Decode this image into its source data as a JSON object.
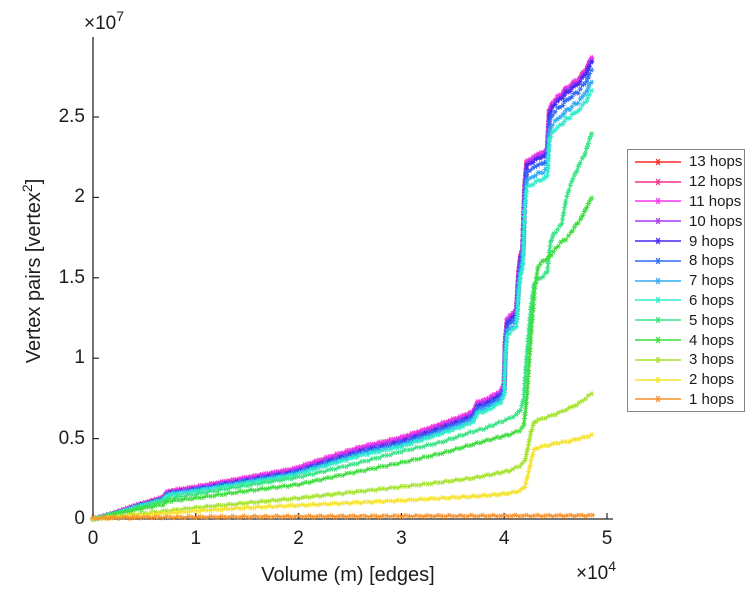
{
  "figure": {
    "xlabel": "Volume (m) [edges]",
    "ylabel_pre": "Vertex pairs [vertex",
    "ylabel_sup": "2",
    "ylabel_post": "]",
    "y_exponent_base": "×10",
    "y_exponent": "7",
    "x_exponent_base": "×10",
    "x_exponent": "4",
    "x_tick_labels": [
      "0",
      "1",
      "2",
      "3",
      "4",
      "5"
    ],
    "y_tick_labels": [
      "0",
      "0.5",
      "1",
      "1.5",
      "2",
      "2.5"
    ],
    "axis_color": "#262626",
    "text_color": "#1c1c1c",
    "legend_border_color": "#848484"
  },
  "chart_data": {
    "type": "line",
    "title": "",
    "xlabel": "Volume (m) [edges]",
    "ylabel": "Vertex pairs [vertex^2]",
    "x_scale_exponent": 4,
    "y_scale_exponent": 7,
    "xlim": [
      0,
      5.06
    ],
    "ylim": [
      0,
      3.0
    ],
    "x_ticks": [
      0,
      1,
      2,
      3,
      4,
      5
    ],
    "y_ticks": [
      0,
      0.5,
      1,
      1.5,
      2,
      2.5
    ],
    "marker": "asterisk",
    "grid": false,
    "legend_position": "right-outside",
    "shapes": {
      "hops9_base": [
        [
          0,
          0
        ],
        [
          0.18,
          0.03
        ],
        [
          0.4,
          0.075
        ],
        [
          0.68,
          0.125
        ],
        [
          0.72,
          0.155
        ],
        [
          0.78,
          0.165
        ],
        [
          1.0,
          0.185
        ],
        [
          1.5,
          0.24
        ],
        [
          1.95,
          0.29
        ],
        [
          2.3,
          0.36
        ],
        [
          2.6,
          0.42
        ],
        [
          3.0,
          0.48
        ],
        [
          3.3,
          0.545
        ],
        [
          3.6,
          0.615
        ],
        [
          3.7,
          0.645
        ],
        [
          3.74,
          0.7
        ],
        [
          3.82,
          0.715
        ],
        [
          3.9,
          0.745
        ],
        [
          3.97,
          0.775
        ],
        [
          4.0,
          0.82
        ],
        [
          4.01,
          1.08
        ],
        [
          4.03,
          1.22
        ],
        [
          4.08,
          1.25
        ],
        [
          4.12,
          1.28
        ],
        [
          4.14,
          1.5
        ],
        [
          4.16,
          1.62
        ],
        [
          4.18,
          1.66
        ],
        [
          4.2,
          2.05
        ],
        [
          4.22,
          2.2
        ],
        [
          4.28,
          2.22
        ],
        [
          4.33,
          2.245
        ],
        [
          4.38,
          2.25
        ],
        [
          4.42,
          2.28
        ],
        [
          4.44,
          2.52
        ],
        [
          4.47,
          2.56
        ],
        [
          4.52,
          2.6
        ],
        [
          4.57,
          2.62
        ],
        [
          4.6,
          2.655
        ],
        [
          4.64,
          2.66
        ],
        [
          4.68,
          2.695
        ],
        [
          4.72,
          2.7
        ],
        [
          4.76,
          2.745
        ],
        [
          4.8,
          2.77
        ],
        [
          4.83,
          2.82
        ],
        [
          4.85,
          2.84
        ]
      ],
      "hops5": [
        [
          0,
          0
        ],
        [
          0.4,
          0.065
        ],
        [
          0.7,
          0.115
        ],
        [
          0.75,
          0.13
        ],
        [
          1.0,
          0.155
        ],
        [
          1.5,
          0.21
        ],
        [
          2.0,
          0.26
        ],
        [
          2.5,
          0.335
        ],
        [
          3.0,
          0.42
        ],
        [
          3.4,
          0.48
        ],
        [
          3.7,
          0.545
        ],
        [
          3.8,
          0.56
        ],
        [
          3.95,
          0.6
        ],
        [
          4.05,
          0.625
        ],
        [
          4.12,
          0.65
        ],
        [
          4.16,
          0.68
        ],
        [
          4.19,
          0.75
        ],
        [
          4.21,
          0.95
        ],
        [
          4.23,
          1.1
        ],
        [
          4.26,
          1.32
        ],
        [
          4.29,
          1.46
        ],
        [
          4.33,
          1.49
        ],
        [
          4.38,
          1.51
        ],
        [
          4.42,
          1.54
        ],
        [
          4.45,
          1.72
        ],
        [
          4.48,
          1.77
        ],
        [
          4.52,
          1.8
        ],
        [
          4.56,
          1.84
        ],
        [
          4.6,
          1.98
        ],
        [
          4.63,
          2.05
        ],
        [
          4.67,
          2.12
        ],
        [
          4.71,
          2.17
        ],
        [
          4.74,
          2.22
        ],
        [
          4.78,
          2.26
        ],
        [
          4.81,
          2.32
        ],
        [
          4.85,
          2.4
        ]
      ],
      "hops4": [
        [
          0,
          0
        ],
        [
          0.4,
          0.055
        ],
        [
          0.68,
          0.09
        ],
        [
          0.73,
          0.11
        ],
        [
          1.0,
          0.13
        ],
        [
          1.5,
          0.175
        ],
        [
          2.0,
          0.215
        ],
        [
          2.5,
          0.285
        ],
        [
          3.0,
          0.35
        ],
        [
          3.4,
          0.41
        ],
        [
          3.7,
          0.465
        ],
        [
          3.9,
          0.5
        ],
        [
          4.05,
          0.525
        ],
        [
          4.15,
          0.55
        ],
        [
          4.19,
          0.58
        ],
        [
          4.22,
          0.75
        ],
        [
          4.24,
          0.95
        ],
        [
          4.27,
          1.22
        ],
        [
          4.3,
          1.45
        ],
        [
          4.33,
          1.57
        ],
        [
          4.37,
          1.6
        ],
        [
          4.42,
          1.62
        ],
        [
          4.46,
          1.645
        ],
        [
          4.5,
          1.68
        ],
        [
          4.55,
          1.72
        ],
        [
          4.6,
          1.74
        ],
        [
          4.65,
          1.78
        ],
        [
          4.7,
          1.83
        ],
        [
          4.74,
          1.86
        ],
        [
          4.78,
          1.91
        ],
        [
          4.82,
          1.96
        ],
        [
          4.85,
          2.0
        ]
      ],
      "hops3": [
        [
          0,
          0
        ],
        [
          0.5,
          0.035
        ],
        [
          1.0,
          0.07
        ],
        [
          1.5,
          0.1
        ],
        [
          2.0,
          0.13
        ],
        [
          2.5,
          0.165
        ],
        [
          3.0,
          0.2
        ],
        [
          3.4,
          0.23
        ],
        [
          3.7,
          0.255
        ],
        [
          3.9,
          0.28
        ],
        [
          4.05,
          0.3
        ],
        [
          4.15,
          0.33
        ],
        [
          4.2,
          0.36
        ],
        [
          4.23,
          0.44
        ],
        [
          4.26,
          0.54
        ],
        [
          4.29,
          0.6
        ],
        [
          4.33,
          0.615
        ],
        [
          4.4,
          0.63
        ],
        [
          4.47,
          0.645
        ],
        [
          4.53,
          0.66
        ],
        [
          4.6,
          0.68
        ],
        [
          4.67,
          0.7
        ],
        [
          4.73,
          0.72
        ],
        [
          4.79,
          0.75
        ],
        [
          4.85,
          0.78
        ]
      ],
      "hops2": [
        [
          0,
          0
        ],
        [
          0.5,
          0.025
        ],
        [
          1.0,
          0.05
        ],
        [
          1.5,
          0.07
        ],
        [
          2.0,
          0.085
        ],
        [
          2.5,
          0.1
        ],
        [
          3.0,
          0.115
        ],
        [
          3.4,
          0.13
        ],
        [
          3.7,
          0.14
        ],
        [
          3.9,
          0.15
        ],
        [
          4.05,
          0.16
        ],
        [
          4.15,
          0.175
        ],
        [
          4.2,
          0.2
        ],
        [
          4.23,
          0.27
        ],
        [
          4.26,
          0.36
        ],
        [
          4.29,
          0.43
        ],
        [
          4.33,
          0.445
        ],
        [
          4.4,
          0.455
        ],
        [
          4.47,
          0.465
        ],
        [
          4.53,
          0.475
        ],
        [
          4.6,
          0.48
        ],
        [
          4.67,
          0.49
        ],
        [
          4.73,
          0.5
        ],
        [
          4.79,
          0.51
        ],
        [
          4.85,
          0.52
        ]
      ],
      "hops1": [
        [
          0,
          0.005
        ],
        [
          0.5,
          0.01
        ],
        [
          1.0,
          0.012
        ],
        [
          2.0,
          0.016
        ],
        [
          3.0,
          0.018
        ],
        [
          4.0,
          0.02
        ],
        [
          4.4,
          0.02
        ],
        [
          4.86,
          0.022
        ]
      ]
    },
    "series": [
      {
        "name": "13 hops",
        "color": "#f92c26",
        "shape": "hops9_base",
        "scale": 1,
        "offset": 0.02
      },
      {
        "name": "12 hops",
        "color": "#f7308d",
        "shape": "hops9_base",
        "scale": 1,
        "offset": 0.024
      },
      {
        "name": "11 hops",
        "color": "#f537f0",
        "shape": "hops9_base",
        "scale": 1,
        "offset": 0.028
      },
      {
        "name": "10 hops",
        "color": "#a93bf0",
        "shape": "hops9_base",
        "scale": 1,
        "offset": 0.012
      },
      {
        "name": "9 hops",
        "color": "#4629f0",
        "shape": "hops9_base",
        "scale": 1,
        "offset": 0
      },
      {
        "name": "8 hops",
        "color": "#2f6cf5",
        "shape": "hops9_base",
        "scale": 0.982,
        "offset": 0
      },
      {
        "name": "7 hops",
        "color": "#33aaf2",
        "shape": "hops9_base",
        "scale": 0.958,
        "offset": 0
      },
      {
        "name": "6 hops",
        "color": "#2fedcc",
        "shape": "hops9_base",
        "scale": 0.938,
        "offset": 0
      },
      {
        "name": "5 hops",
        "color": "#38e385",
        "shape": "hops5",
        "scale": 1,
        "offset": 0
      },
      {
        "name": "4 hops",
        "color": "#3fdc3f",
        "shape": "hops4",
        "scale": 1,
        "offset": 0
      },
      {
        "name": "3 hops",
        "color": "#a6e32f",
        "shape": "hops3",
        "scale": 1,
        "offset": 0
      },
      {
        "name": "2 hops",
        "color": "#f5e32e",
        "shape": "hops2",
        "scale": 1,
        "offset": 0
      },
      {
        "name": "1 hops",
        "color": "#f5922e",
        "shape": "hops1",
        "scale": 1,
        "offset": 0
      }
    ]
  }
}
